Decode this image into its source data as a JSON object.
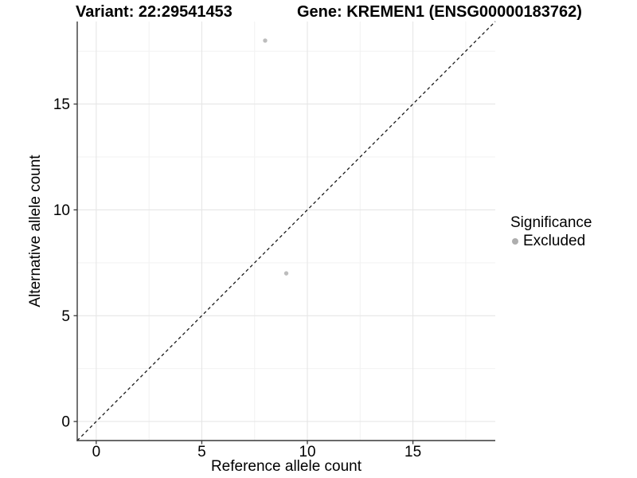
{
  "chart_data": {
    "type": "scatter",
    "title_left": "Variant: 22:29541453",
    "title_right": "Gene: KREMEN1 (ENSG00000183762)",
    "xlabel": "Reference allele count",
    "ylabel": "Alternative allele count",
    "xlim": [
      -0.9,
      18.9
    ],
    "ylim": [
      -0.9,
      18.9
    ],
    "x_ticks": [
      0,
      5,
      10,
      15
    ],
    "y_ticks": [
      0,
      5,
      10,
      15
    ],
    "x_minor_ticks": [
      2.5,
      7.5,
      12.5,
      17.5
    ],
    "y_minor_ticks": [
      2.5,
      7.5,
      12.5,
      17.5
    ],
    "grid": true,
    "legend_position": "right",
    "series": [
      {
        "name": "Excluded",
        "color": "#bdbdbd",
        "points": [
          {
            "x": 8,
            "y": 18
          },
          {
            "x": 9,
            "y": 7
          }
        ]
      }
    ],
    "reference_line": {
      "style": "dashed",
      "color": "#1a1a1a",
      "x0": -0.9,
      "y0": -0.9,
      "x1": 18.9,
      "y1": 18.9
    },
    "legend": {
      "title": "Significance",
      "items": [
        {
          "label": "Excluded",
          "color": "#aeaeae"
        }
      ]
    },
    "colors": {
      "grid_major": "#e6e6e6",
      "grid_minor": "#f2f2f2",
      "axis_line": "#383838",
      "text": "#000000"
    }
  }
}
